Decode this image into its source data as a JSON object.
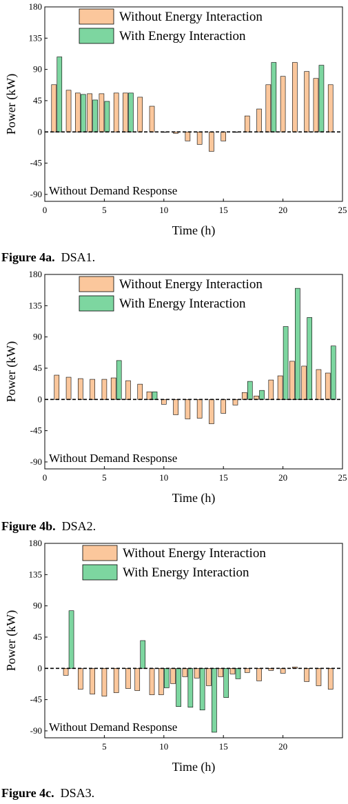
{
  "colors": {
    "without": "#fbc79c",
    "with": "#7dd6a0",
    "edge": "#000000"
  },
  "captions": [
    {
      "label": "Figure 4a.",
      "text": "DSA1."
    },
    {
      "label": "Figure 4b.",
      "text": "DSA2."
    },
    {
      "label": "Figure 4c.",
      "text": "DSA3."
    }
  ],
  "chart_data": [
    {
      "type": "bar",
      "title": "",
      "xlabel": "Time (h)",
      "ylabel": "Power (kW)",
      "annotation": "Without Demand Response",
      "xlim": [
        0,
        25
      ],
      "ylim": [
        -100,
        180
      ],
      "xticks": [
        0,
        5,
        10,
        15,
        20,
        25
      ],
      "yticks": [
        -90,
        -45,
        0,
        45,
        90,
        135,
        180
      ],
      "zero_line": "dashed",
      "legend_position": "top-center",
      "series": [
        {
          "name": "Without Energy Interaction",
          "color_key": "without",
          "x": [
            1,
            2,
            3,
            4,
            5,
            6,
            7,
            8,
            9,
            10,
            11,
            12,
            13,
            14,
            15,
            16,
            17,
            18,
            19,
            20,
            21,
            22,
            23,
            24
          ],
          "values": [
            68,
            60,
            56,
            55,
            55,
            56,
            56,
            50,
            37,
            0,
            -2,
            -13,
            -18,
            -28,
            -13,
            0,
            23,
            33,
            68,
            80,
            100,
            87,
            77,
            68
          ]
        },
        {
          "name": "With Energy Interaction",
          "color_key": "with",
          "x": [
            1,
            3,
            4,
            5,
            7,
            19,
            23
          ],
          "values": [
            108,
            54,
            46,
            44,
            56,
            100,
            96
          ]
        }
      ]
    },
    {
      "type": "bar",
      "title": "",
      "xlabel": "Time (h)",
      "ylabel": "Power (kW)",
      "annotation": "Without Demand Response",
      "xlim": [
        0,
        25
      ],
      "ylim": [
        -100,
        180
      ],
      "xticks": [
        0,
        5,
        10,
        15,
        20,
        25
      ],
      "yticks": [
        -90,
        -45,
        0,
        45,
        90,
        135,
        180
      ],
      "zero_line": "dashed",
      "legend_position": "top-center",
      "series": [
        {
          "name": "Without Energy Interaction",
          "color_key": "without",
          "x": [
            1,
            2,
            3,
            4,
            5,
            6,
            7,
            8,
            9,
            10,
            11,
            12,
            13,
            14,
            15,
            16,
            17,
            18,
            19,
            20,
            21,
            22,
            23,
            24
          ],
          "values": [
            35,
            32,
            30,
            29,
            29,
            31,
            27,
            22,
            11,
            -7,
            -22,
            -28,
            -27,
            -35,
            -20,
            -8,
            10,
            5,
            28,
            34,
            55,
            48,
            43,
            38
          ]
        },
        {
          "name": "With Energy Interaction",
          "color_key": "with",
          "x": [
            6,
            9,
            17,
            18,
            20,
            21,
            22,
            24
          ],
          "values": [
            56,
            11,
            26,
            13,
            105,
            160,
            118,
            77
          ]
        }
      ]
    },
    {
      "type": "bar",
      "title": "",
      "xlabel": "Time (h)",
      "ylabel": "Power (kW)",
      "annotation": "Without Demand Response",
      "xlim": [
        0,
        25
      ],
      "ylim": [
        -100,
        180
      ],
      "xticks": [
        5,
        10,
        15,
        20
      ],
      "yticks": [
        -90,
        -45,
        0,
        45,
        90,
        135,
        180
      ],
      "zero_line": "dashed",
      "legend_position": "top-center",
      "series": [
        {
          "name": "Without Energy Interaction",
          "color_key": "without",
          "x": [
            2,
            3,
            4,
            5,
            6,
            7,
            8,
            9,
            10,
            11,
            12,
            13,
            14,
            15,
            16,
            17,
            18,
            19,
            20,
            21,
            22,
            23,
            24
          ],
          "values": [
            -10,
            -30,
            -37,
            -40,
            -35,
            -29,
            -32,
            -38,
            -38,
            -22,
            -12,
            -14,
            -25,
            -12,
            -8,
            -6,
            -18,
            -3,
            -7,
            2,
            -19,
            -25,
            -30
          ]
        },
        {
          "name": "With Energy Interaction",
          "color_key": "with",
          "x": [
            2,
            8,
            10,
            11,
            12,
            13,
            14,
            15,
            16
          ],
          "values": [
            83,
            40,
            -28,
            -55,
            -56,
            -60,
            -92,
            -42,
            -15
          ]
        }
      ]
    }
  ]
}
